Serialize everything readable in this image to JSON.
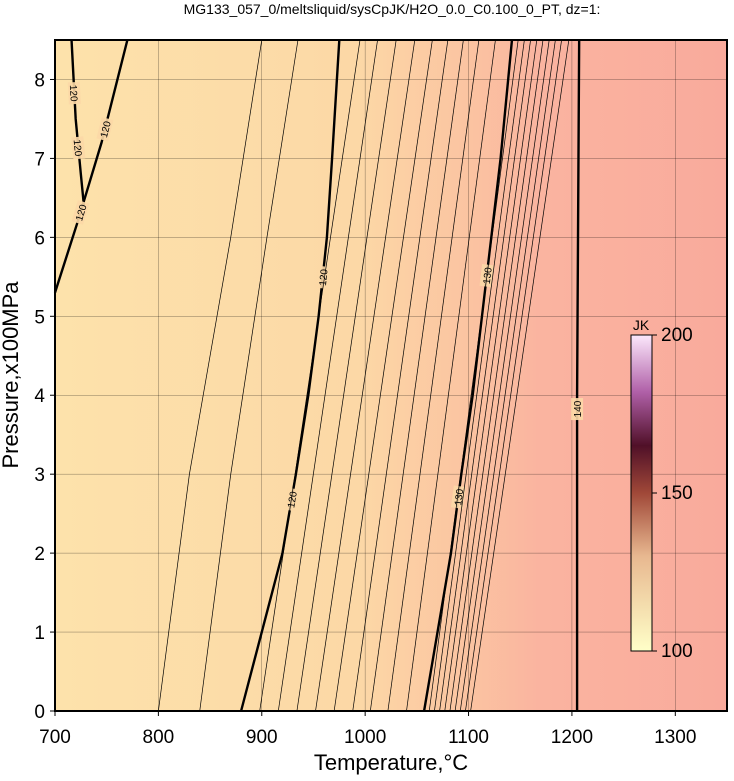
{
  "chart_data": {
    "type": "contour",
    "title": "MG133_057_0/meltsliquid/sysCpJK/H2O_0.0_C0.100_0_PT, dz=1:",
    "x_label": "Temperature,°C",
    "y_label": "Pressure,x100MPa",
    "xlim": [
      700,
      1350
    ],
    "ylim": [
      0,
      8.5
    ],
    "xticks": [
      700,
      800,
      900,
      1000,
      1100,
      1200,
      1300
    ],
    "yticks": [
      0,
      1,
      2,
      3,
      4,
      5,
      6,
      7,
      8
    ],
    "grid": true,
    "colorbar": {
      "label": "JK",
      "clim": [
        100,
        200
      ],
      "ticks": [
        100,
        150,
        200
      ]
    },
    "contours": [
      {
        "level": 120,
        "x": [
          880,
          900,
          920,
          933,
          945,
          955,
          963,
          968,
          975
        ],
        "y": [
          0,
          1,
          2,
          3,
          4,
          5,
          6,
          7,
          8.5
        ]
      },
      {
        "level": 130,
        "x": [
          1057,
          1070,
          1083,
          1093,
          1104,
          1113,
          1122,
          1131,
          1142
        ],
        "y": [
          0,
          1,
          2,
          3,
          4,
          5,
          6,
          7,
          8.5
        ]
      },
      {
        "level": 140,
        "x": [
          1205,
          1205,
          1207
        ],
        "y": [
          0,
          4,
          8.5
        ]
      },
      {
        "level": 120,
        "x": [
          716,
          720,
          725,
          728
        ],
        "y": [
          8.5,
          7.5,
          6.8,
          6.4
        ]
      },
      {
        "level": 120,
        "x": [
          700,
          722,
          745,
          770
        ],
        "y": [
          5.3,
          6.2,
          7.2,
          8.5
        ]
      },
      {
        "level": 119,
        "x": [
          840,
          870,
          905,
          935
        ],
        "y": [
          0,
          3,
          6,
          8.5
        ]
      },
      {
        "level": 118,
        "x": [
          800,
          830,
          870,
          900
        ],
        "y": [
          0,
          3,
          6,
          8.5
        ]
      },
      {
        "level": 121,
        "x": [
          898,
          995
        ],
        "y": [
          0,
          8.5
        ]
      },
      {
        "level": 122,
        "x": [
          916,
          1012
        ],
        "y": [
          0,
          8.5
        ]
      },
      {
        "level": 123,
        "x": [
          934,
          1030
        ],
        "y": [
          0,
          8.5
        ]
      },
      {
        "level": 124,
        "x": [
          952,
          1048
        ],
        "y": [
          0,
          8.5
        ]
      },
      {
        "level": 125,
        "x": [
          970,
          1065
        ],
        "y": [
          0,
          8.5
        ]
      },
      {
        "level": 126,
        "x": [
          988,
          1080
        ],
        "y": [
          0,
          8.5
        ]
      },
      {
        "level": 127,
        "x": [
          1005,
          1095
        ],
        "y": [
          0,
          8.5
        ]
      },
      {
        "level": 128,
        "x": [
          1022,
          1110
        ],
        "y": [
          0,
          8.5
        ]
      },
      {
        "level": 129,
        "x": [
          1040,
          1126
        ],
        "y": [
          0,
          8.5
        ]
      },
      {
        "level": 131,
        "x": [
          1062,
          1148
        ],
        "y": [
          0,
          8.5
        ]
      },
      {
        "level": 132,
        "x": [
          1067,
          1154
        ],
        "y": [
          0,
          8.5
        ]
      },
      {
        "level": 133,
        "x": [
          1072,
          1160
        ],
        "y": [
          0,
          8.5
        ]
      },
      {
        "level": 134,
        "x": [
          1077,
          1166
        ],
        "y": [
          0,
          8.5
        ]
      },
      {
        "level": 135,
        "x": [
          1082,
          1172
        ],
        "y": [
          0,
          8.5
        ]
      },
      {
        "level": 136,
        "x": [
          1087,
          1178
        ],
        "y": [
          0,
          8.5
        ]
      },
      {
        "level": 137,
        "x": [
          1092,
          1184
        ],
        "y": [
          0,
          8.5
        ]
      },
      {
        "level": 138,
        "x": [
          1097,
          1190
        ],
        "y": [
          0,
          8.5
        ]
      },
      {
        "level": 139,
        "x": [
          1102,
          1197
        ],
        "y": [
          0,
          8.5
        ]
      }
    ]
  }
}
